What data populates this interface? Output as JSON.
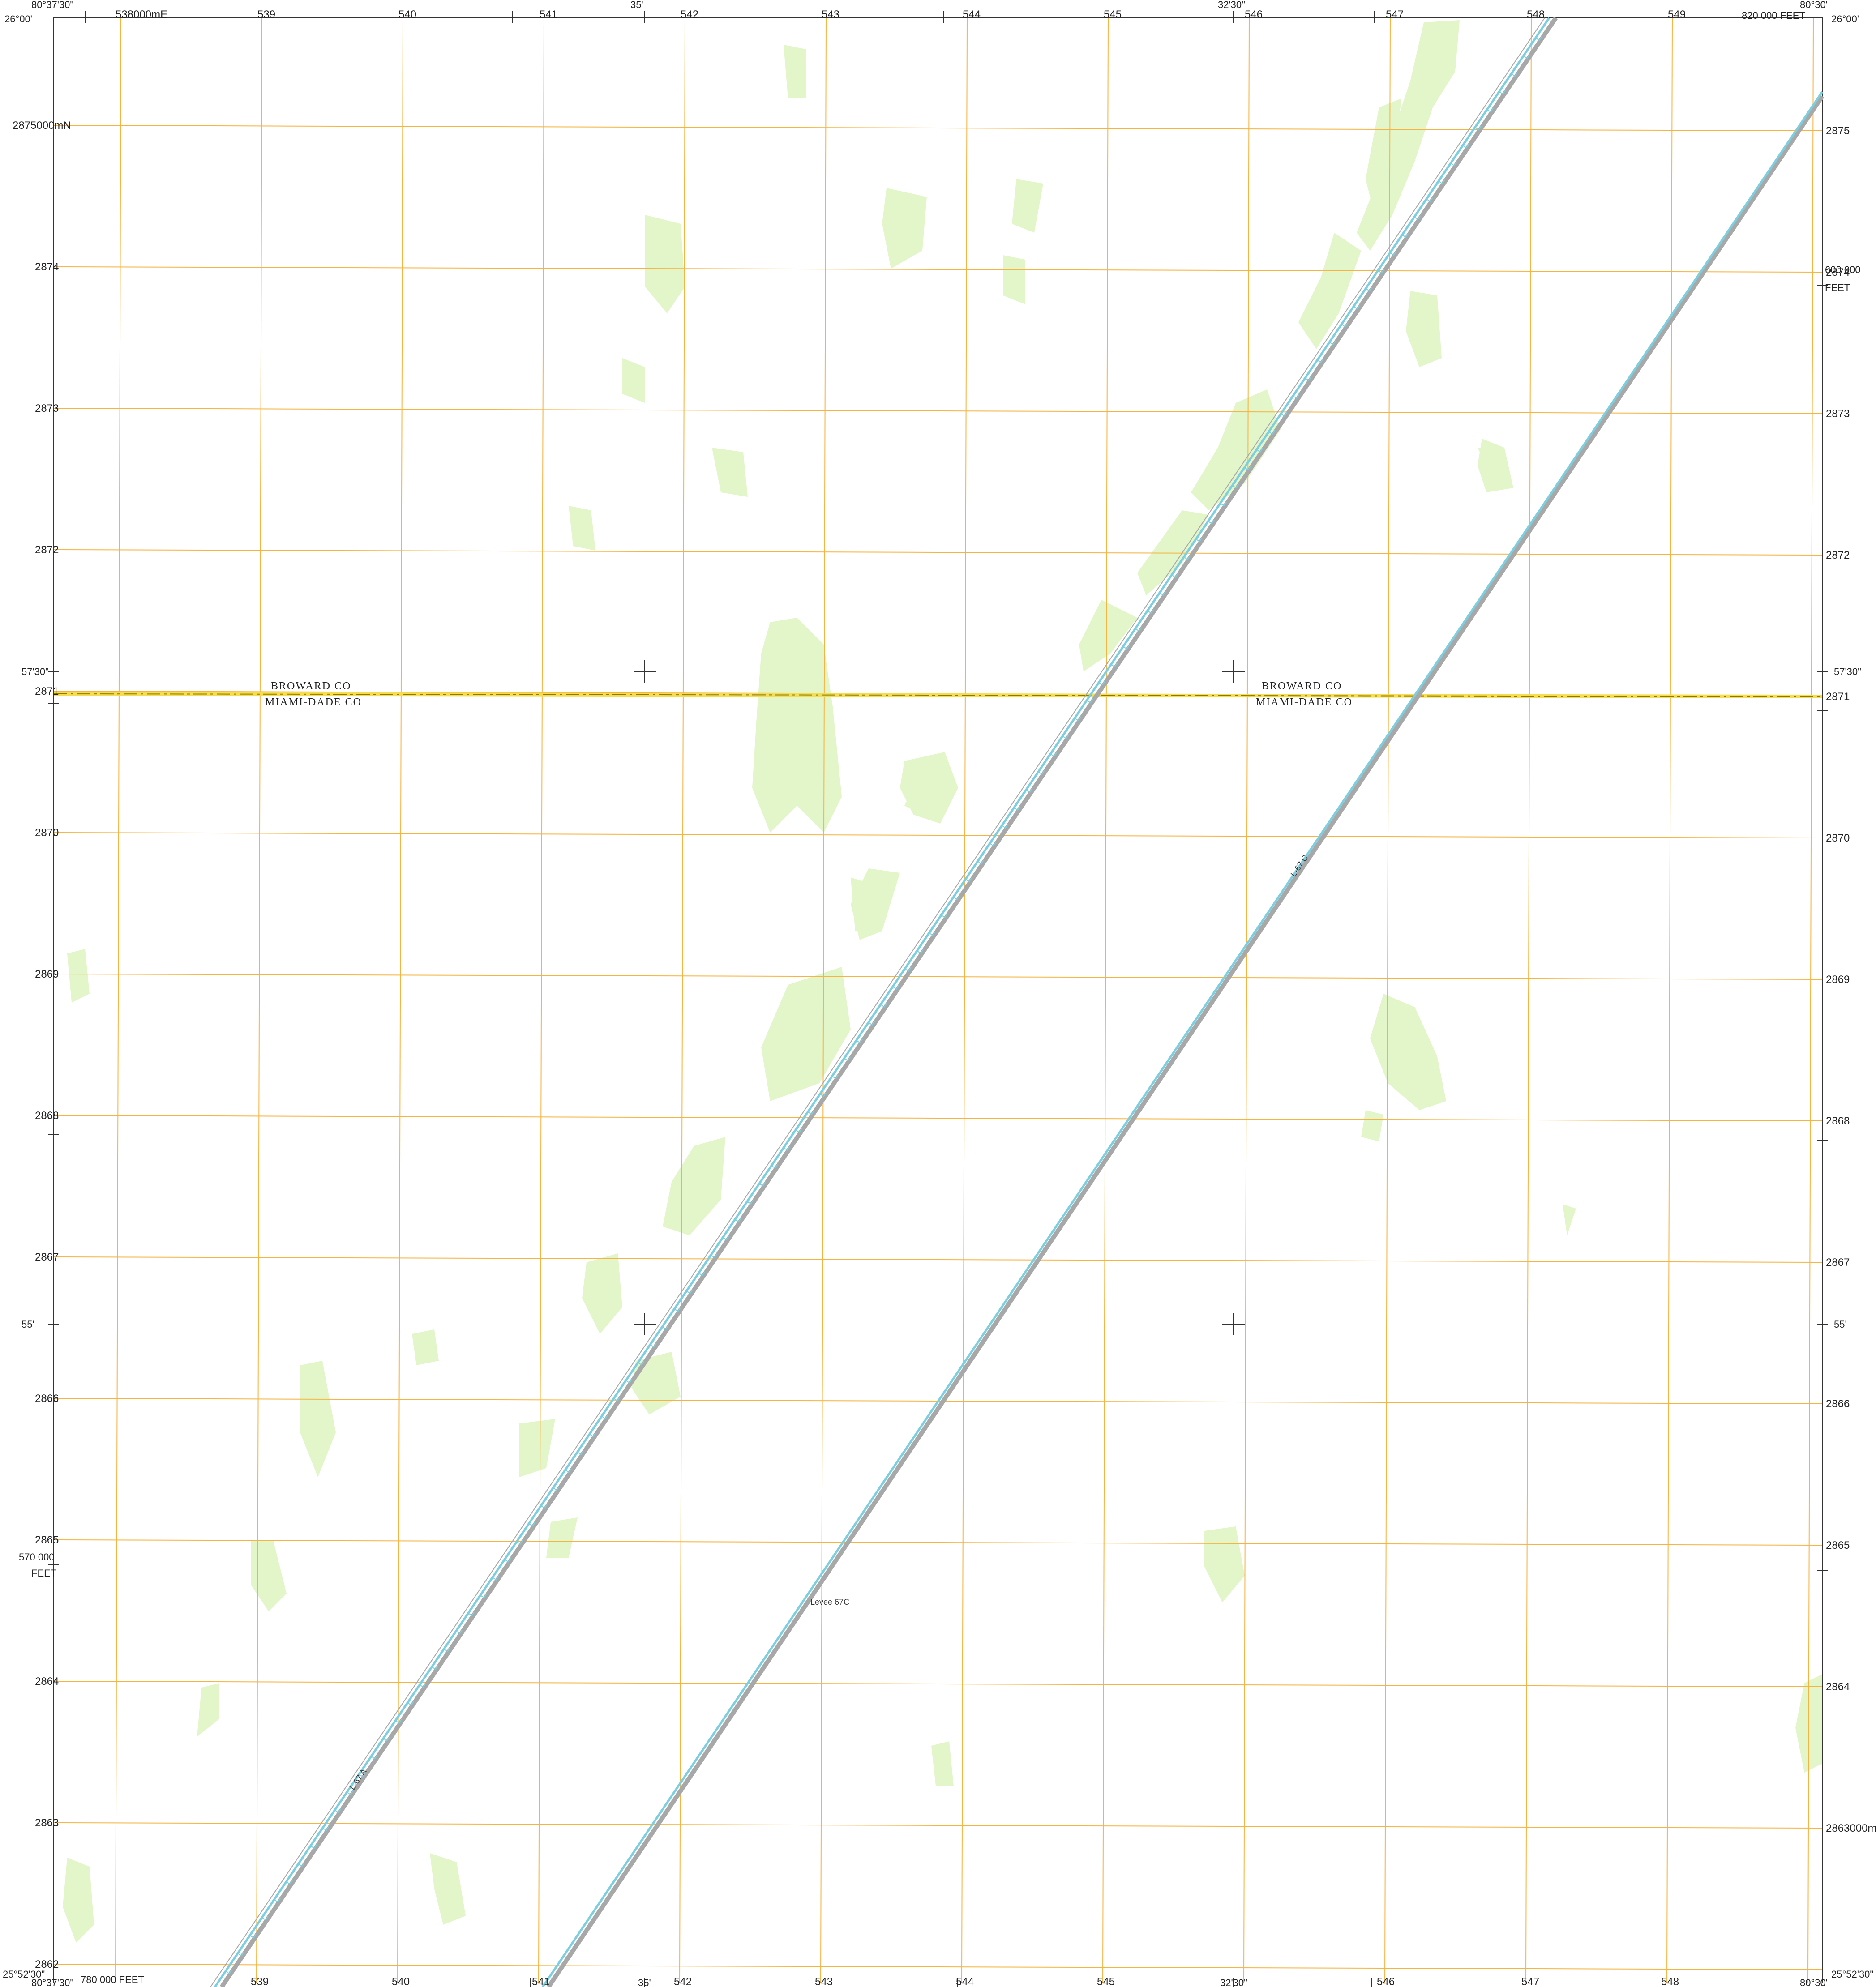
{
  "corners": {
    "top_left_lon": "80°37'30\"",
    "top_left_lat": "26°00'",
    "top_right_lon": "80°30'",
    "top_right_lat": "26°00'",
    "bottom_left_lon": "80°37'30\"",
    "bottom_left_lat": "25°52'30\"",
    "bottom_right_lon": "80°30'",
    "bottom_right_lat": "25°52'30\""
  },
  "top_ticks": {
    "mid_lon_1": "35'",
    "mid_lon_2": "32'30\"",
    "feet_label": "820 000 FEET"
  },
  "bottom_ticks": {
    "mid_lon_1": "35'",
    "mid_lon_2": "32'30\"",
    "feet_label": "780 000 FEET"
  },
  "left_ticks": {
    "mid_lat_1": "57'30\"",
    "mid_lat_2": "55'",
    "feet_label_1": "570 000",
    "feet_label_2": "FEET"
  },
  "right_ticks": {
    "mid_lat_1": "57'30\"",
    "mid_lat_2": "55'",
    "feet_label_1": "600 000",
    "feet_label_2": "FEET"
  },
  "easting_labels": {
    "top": [
      "538000mE",
      "539",
      "540",
      "541",
      "542",
      "543",
      "544",
      "545",
      "546",
      "547",
      "548",
      "549"
    ],
    "bottom": [
      "539",
      "540",
      "541",
      "542",
      "543",
      "544",
      "545",
      "546",
      "547",
      "548",
      "549000mE"
    ]
  },
  "northing_labels": {
    "left": [
      "2875000mN",
      "2874",
      "2873",
      "2872",
      "2871",
      "2870",
      "2869",
      "2868",
      "2867",
      "2866",
      "2865",
      "2864",
      "2863",
      "2862"
    ],
    "right": [
      "2875",
      "2874",
      "2873",
      "2872",
      "2871",
      "2870",
      "2869",
      "2868",
      "2867",
      "2866",
      "2865",
      "2864",
      "2863000mN"
    ]
  },
  "county_labels": {
    "west_north": "BROWARD CO",
    "west_south": "MIAMI-DADE CO",
    "east_north": "BROWARD CO",
    "east_south": "MIAMI-DADE CO"
  },
  "features": {
    "canal_west_label": "L-67 A",
    "canal_east_label": "L-67 C",
    "levee_label": "Levee 67C"
  },
  "colors": {
    "grid": "#f5b342",
    "vegetation": "#e3f6c9",
    "canal_water": "#7ccfe0",
    "levee": "#a8a8a8",
    "county_boundary": "#c9b400"
  }
}
